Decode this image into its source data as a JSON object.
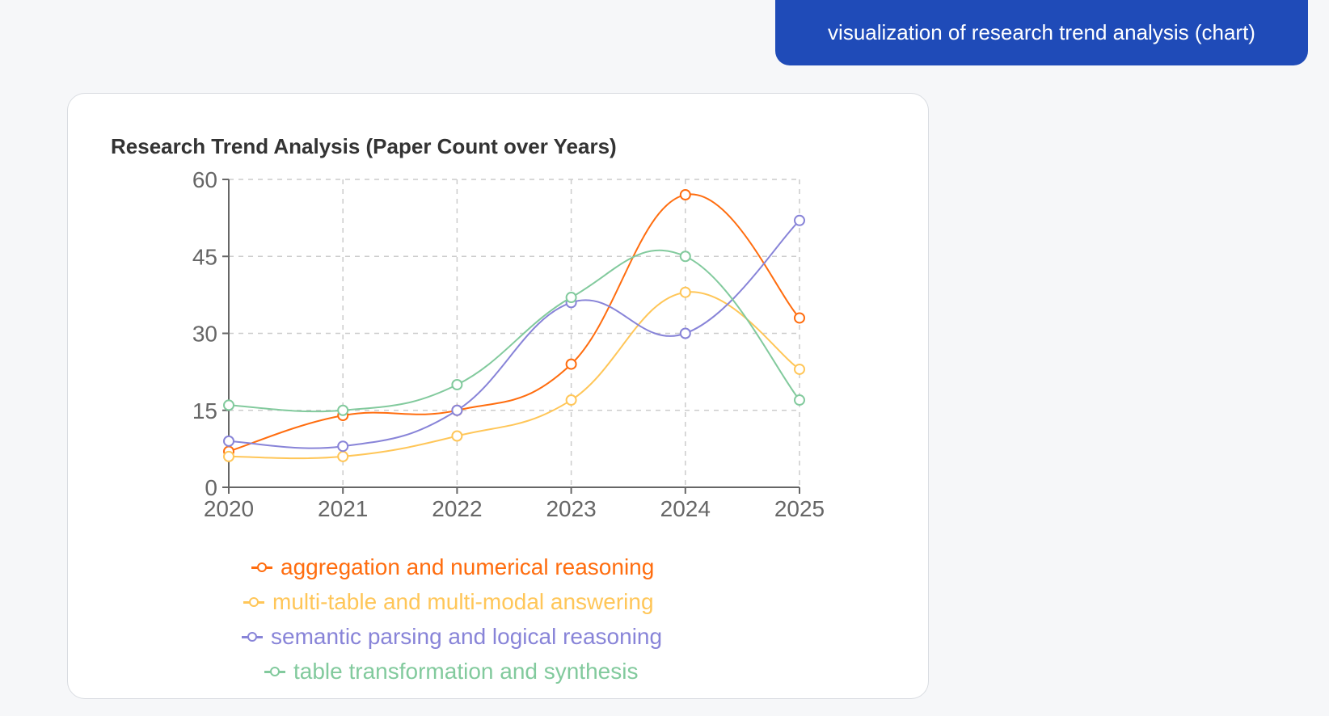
{
  "user_message": {
    "text": "visualization of research trend analysis (chart)"
  },
  "chart": {
    "title": "Research Trend Analysis (Paper Count over Years)"
  },
  "chart_data": {
    "type": "line",
    "title": "Research Trend Analysis (Paper Count over Years)",
    "xlabel": "",
    "ylabel": "",
    "categories": [
      "2020",
      "2021",
      "2022",
      "2023",
      "2024",
      "2025"
    ],
    "ylim": [
      0,
      60
    ],
    "yticks": [
      0,
      15,
      30,
      45,
      60
    ],
    "grid": true,
    "legend_position": "bottom",
    "series": [
      {
        "name": "aggregation and numerical reasoning",
        "color": "#ff6d0f",
        "values": [
          7,
          14,
          15,
          24,
          57,
          33
        ]
      },
      {
        "name": "multi-table and multi-modal answering",
        "color": "#ffc658",
        "values": [
          6,
          6,
          10,
          17,
          38,
          23
        ]
      },
      {
        "name": "semantic parsing and logical reasoning",
        "color": "#8884d8",
        "values": [
          9,
          8,
          15,
          36,
          30,
          52
        ]
      },
      {
        "name": "table transformation and synthesis",
        "color": "#82ca9d",
        "values": [
          16,
          15,
          20,
          37,
          45,
          17
        ]
      }
    ]
  }
}
